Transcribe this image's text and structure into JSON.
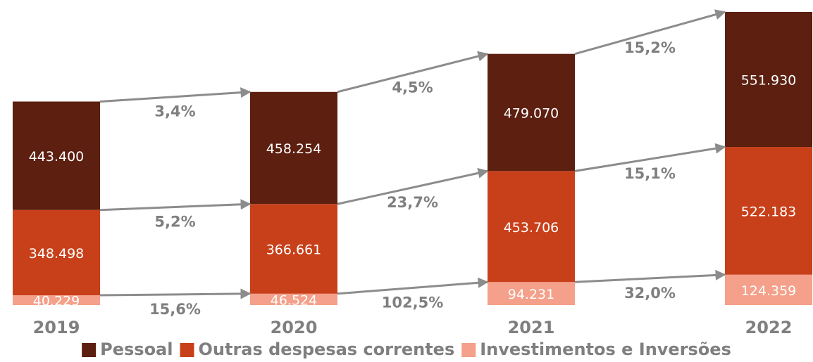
{
  "chart_data": {
    "type": "stacked_bar",
    "categories": [
      "2019",
      "2020",
      "2021",
      "2022"
    ],
    "series": [
      {
        "name": "Investimentos e Inversões",
        "color": "#f4a08a",
        "values": [
          40229,
          46524,
          94231,
          124359
        ],
        "value_labels": [
          "40.229",
          "46.524",
          "94.231",
          "124.359"
        ],
        "growth": [
          "15,6%",
          "102,5%",
          "32,0%"
        ]
      },
      {
        "name": "Outras despesas correntes",
        "color": "#c8401a",
        "values": [
          348498,
          366661,
          453706,
          522183
        ],
        "value_labels": [
          "348.498",
          "366.661",
          "453.706",
          "522.183"
        ],
        "growth": [
          "5,2%",
          "23,7%",
          "15,1%"
        ]
      },
      {
        "name": "Pessoal",
        "color": "#5c1f10",
        "values": [
          443400,
          458254,
          479070,
          551930
        ],
        "value_labels": [
          "443.400",
          "458.254",
          "479.070",
          "551.930"
        ],
        "growth": [
          "3,4%",
          "4,5%",
          "15,2%"
        ]
      }
    ],
    "legend": [
      "Pessoal",
      "Outras despesas correntes",
      "Investimentos e Inversões"
    ]
  }
}
